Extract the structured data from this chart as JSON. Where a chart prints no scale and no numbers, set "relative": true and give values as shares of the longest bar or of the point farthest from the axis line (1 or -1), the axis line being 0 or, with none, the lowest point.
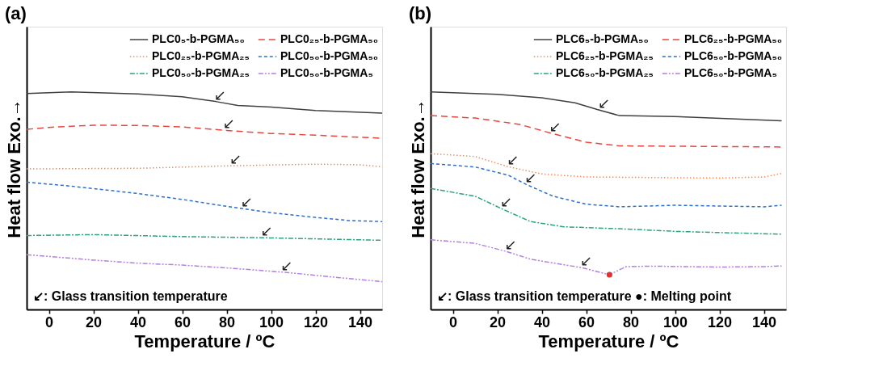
{
  "chart_data": [
    {
      "type": "line",
      "title": "(a)",
      "xlabel": "Temperature / ºC",
      "ylabel": "Heat flow      Exo.→",
      "relative": true,
      "xlim": [
        -10,
        150
      ],
      "xticks": [
        0,
        20,
        40,
        60,
        80,
        100,
        120,
        140
      ],
      "legend": "top right",
      "grid": false,
      "series": [
        {
          "name": "PLC0₅-b-PGMA₅₀",
          "color": "#404040",
          "line_style": "solid",
          "x": [
            -10,
            10,
            40,
            60,
            75,
            85,
            100,
            120,
            150
          ],
          "values": [
            0.993,
            1.0,
            0.991,
            0.978,
            0.956,
            0.938,
            0.93,
            0.915,
            0.903
          ]
        },
        {
          "name": "PLC0₂₅-b-PGMA₅₀",
          "color": "#e8463c",
          "line_style": "dashed",
          "x": [
            -10,
            0,
            20,
            40,
            60,
            80,
            100,
            120,
            150
          ],
          "values": [
            0.828,
            0.837,
            0.847,
            0.846,
            0.839,
            0.823,
            0.809,
            0.801,
            0.787
          ]
        },
        {
          "name": "PLC0₂₅-b-PGMA₂₅",
          "color": "#f28c5a",
          "line_style": "dotted",
          "x": [
            -10,
            40,
            80,
            120,
            140,
            150
          ],
          "values": [
            0.646,
            0.649,
            0.66,
            0.668,
            0.665,
            0.656
          ]
        },
        {
          "name": "PLC0₅₀-b-PGMA₅₀",
          "color": "#2a6fcf",
          "line_style": "shortdash",
          "x": [
            -10,
            10,
            40,
            60,
            80,
            87,
            100,
            120,
            135,
            150
          ],
          "values": [
            0.585,
            0.567,
            0.533,
            0.506,
            0.474,
            0.464,
            0.445,
            0.423,
            0.409,
            0.404
          ]
        },
        {
          "name": "PLC0₅₀-b-PGMA₂₅",
          "color": "#2aa57a",
          "line_style": "dashdot",
          "x": [
            -10,
            20,
            60,
            100,
            150
          ],
          "values": [
            0.34,
            0.344,
            0.335,
            0.329,
            0.318
          ]
        },
        {
          "name": "PLC0₅₀-b-PGMA₅",
          "color": "#b37fe0",
          "line_style": "dashdotdot",
          "x": [
            -10,
            20,
            40,
            60,
            80,
            105,
            130,
            150
          ],
          "values": [
            0.252,
            0.227,
            0.213,
            0.204,
            0.191,
            0.172,
            0.147,
            0.128
          ]
        }
      ],
      "annotations": [
        {
          "text": "↙",
          "x": 75,
          "y": 0.956
        },
        {
          "text": "↙",
          "x": 79,
          "y": 0.823
        },
        {
          "text": "↙",
          "x": 82,
          "y": 0.66
        },
        {
          "text": "↙",
          "x": 87,
          "y": 0.464
        },
        {
          "text": "↙",
          "x": 96,
          "y": 0.33
        },
        {
          "text": "↙",
          "x": 105,
          "y": 0.172
        },
        "↙: Glass transition temperature"
      ]
    },
    {
      "type": "line",
      "title": "(b)",
      "xlabel": "Temperature / ºC",
      "ylabel": "Heat flow      Exo.→",
      "relative": true,
      "xlim": [
        -10,
        150
      ],
      "xticks": [
        0,
        20,
        40,
        60,
        80,
        100,
        120,
        140
      ],
      "legend": "top right",
      "grid": false,
      "series": [
        {
          "name": "PLC6₅-b-PGMA₅₀",
          "color": "#404040",
          "line_style": "solid",
          "x": [
            -10,
            20,
            40,
            55,
            65,
            75,
            100,
            148
          ],
          "values": [
            1.0,
            0.989,
            0.973,
            0.95,
            0.919,
            0.891,
            0.887,
            0.867
          ]
        },
        {
          "name": "PLC6₂₅-b-PGMA₅₀",
          "color": "#e8463c",
          "line_style": "dashed",
          "x": [
            -10,
            10,
            30,
            45,
            60,
            75,
            148
          ],
          "values": [
            0.891,
            0.88,
            0.851,
            0.808,
            0.769,
            0.752,
            0.747
          ]
        },
        {
          "name": "PLC6₂₅-b-PGMA₂₅",
          "color": "#f28c5a",
          "line_style": "dotted",
          "x": [
            -10,
            10,
            25,
            40,
            60,
            120,
            140,
            148
          ],
          "values": [
            0.716,
            0.703,
            0.656,
            0.623,
            0.609,
            0.604,
            0.609,
            0.625
          ]
        },
        {
          "name": "PLC6₅₀-b-PGMA₅₀",
          "color": "#2a6fcf",
          "line_style": "shortdash",
          "x": [
            -10,
            10,
            25,
            33,
            45,
            60,
            75,
            100,
            140,
            148
          ],
          "values": [
            0.671,
            0.655,
            0.617,
            0.575,
            0.521,
            0.484,
            0.472,
            0.479,
            0.472,
            0.479
          ]
        },
        {
          "name": "PLC6₅₀-b-PGMA₂₅",
          "color": "#2aa57a",
          "line_style": "dashdot",
          "x": [
            -10,
            10,
            22,
            35,
            50,
            80,
            100,
            148
          ],
          "values": [
            0.556,
            0.521,
            0.463,
            0.404,
            0.38,
            0.369,
            0.359,
            0.346
          ]
        },
        {
          "name": "PLC6₅₀-b-PGMA₅",
          "color": "#b37fe0",
          "line_style": "dashdotdot",
          "x": [
            -10,
            10,
            24,
            35,
            58,
            70.5,
            78,
            90,
            120,
            140,
            148
          ],
          "values": [
            0.32,
            0.304,
            0.267,
            0.231,
            0.192,
            0.16,
            0.197,
            0.199,
            0.195,
            0.197,
            0.2
          ]
        },
        {
          "type": "scatter",
          "marker": "circle",
          "color": "#e03030",
          "x": [
            70.5
          ],
          "values": [
            0.16
          ]
        }
      ],
      "annotations": [
        {
          "text": "↙",
          "x": 66,
          "y": 0.919
        },
        {
          "text": "↙",
          "x": 44,
          "y": 0.808
        },
        {
          "text": "↙",
          "x": 25,
          "y": 0.656
        },
        {
          "text": "↙",
          "x": 33,
          "y": 0.575
        },
        {
          "text": "↙",
          "x": 22,
          "y": 0.463
        },
        {
          "text": "↙",
          "x": 24,
          "y": 0.267
        },
        {
          "text": "↙",
          "x": 58,
          "y": 0.192
        },
        "↙: Glass transition temperature   ●: Melting point"
      ]
    }
  ]
}
